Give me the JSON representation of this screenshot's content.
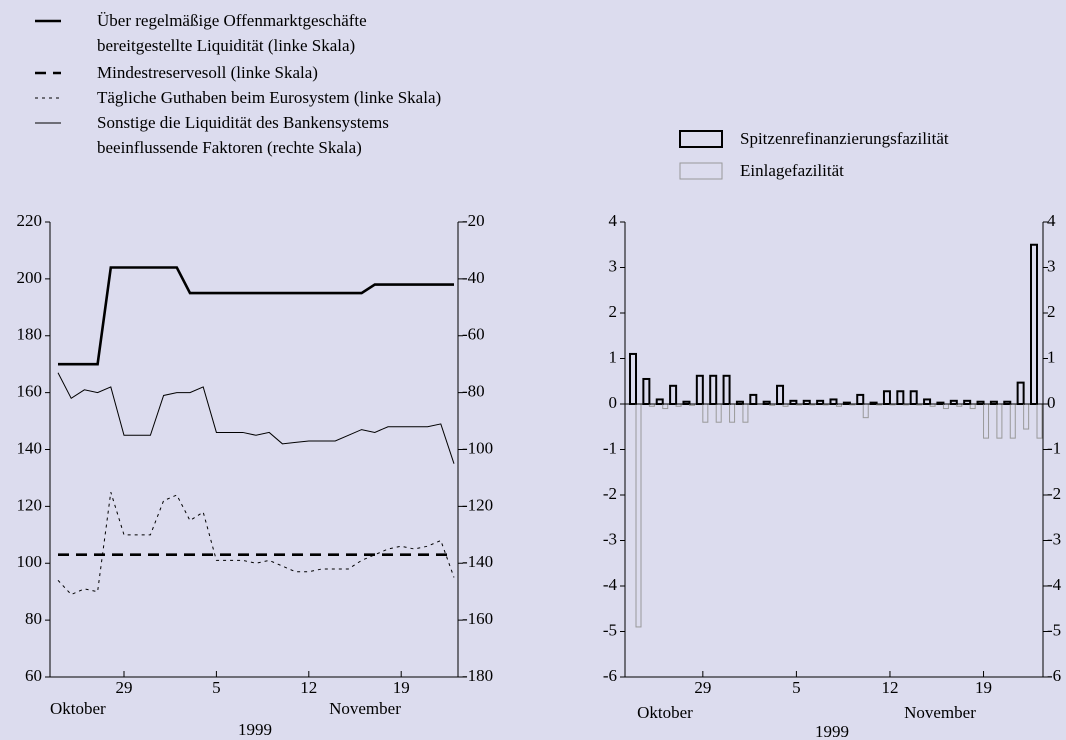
{
  "chart_data": [
    {
      "type": "line",
      "categories": [
        null,
        null,
        null,
        null,
        null,
        "29",
        null,
        null,
        null,
        null,
        null,
        null,
        "5",
        null,
        null,
        null,
        null,
        null,
        null,
        "12",
        null,
        null,
        null,
        null,
        null,
        null,
        "19",
        null,
        null,
        null,
        null
      ],
      "annotations": [
        "Oktober",
        "November",
        "1999"
      ],
      "legend": "top-left",
      "ylim": [
        60,
        220
      ],
      "yticks": [
        60,
        80,
        100,
        120,
        140,
        160,
        180,
        200,
        220
      ],
      "y2lim": [
        -180,
        -20
      ],
      "y2ticks": [
        -180,
        -160,
        -140,
        -120,
        -100,
        -80,
        -60,
        -40,
        -20
      ],
      "series": [
        {
          "name": "Über regelmäßige Offenmarktgeschäfte\nbereitgestellte Liquidität (linke Skala)",
          "color": "#000000",
          "style": "thick",
          "values": [
            170,
            170,
            170,
            170,
            204,
            204,
            204,
            204,
            204,
            204,
            195,
            195,
            195,
            195,
            195,
            195,
            195,
            195,
            195,
            195,
            195,
            195,
            195,
            195,
            198,
            198,
            198,
            198,
            198,
            198,
            198
          ]
        },
        {
          "name": "Mindestreservesoll (linke Skala)",
          "color": "#000000",
          "style": "dashed",
          "values": [
            103,
            103,
            103,
            103,
            103,
            103,
            103,
            103,
            103,
            103,
            103,
            103,
            103,
            103,
            103,
            103,
            103,
            103,
            103,
            103,
            103,
            103,
            103,
            103,
            103,
            103,
            103,
            103,
            103,
            103,
            103
          ]
        },
        {
          "name": "Tägliche Guthaben beim Eurosystem (linke Skala)",
          "color": "#000000",
          "style": "dotted",
          "values": [
            94,
            89,
            91,
            90,
            125,
            110,
            110,
            110,
            122,
            124,
            115,
            118,
            101,
            101,
            101,
            100,
            101,
            99,
            97,
            97,
            98,
            98,
            98,
            101,
            103,
            105,
            106,
            105,
            106,
            108,
            95
          ]
        },
        {
          "name": "Sonstige die Liquidität des Bankensystems\nbeeinflussende Faktoren (rechte Skala)",
          "color": "#000000",
          "style": "thin",
          "axis": "y2",
          "values": [
            -73,
            -82,
            -79,
            -80,
            -78,
            -95,
            -95,
            -95,
            -81,
            -80,
            -80,
            -78,
            -94,
            -94,
            -94,
            -95,
            -94,
            -98,
            -97.5,
            -97,
            -97,
            -97,
            -95,
            -93,
            -94,
            -92,
            -92,
            -92,
            -92,
            -91,
            -105
          ]
        }
      ]
    },
    {
      "type": "bar",
      "categories": [
        null,
        null,
        null,
        null,
        null,
        "29",
        null,
        null,
        null,
        null,
        null,
        null,
        "5",
        null,
        null,
        null,
        null,
        null,
        null,
        "12",
        null,
        null,
        null,
        null,
        null,
        null,
        "19",
        null,
        null,
        null,
        null
      ],
      "annotations": [
        "Oktober",
        "November",
        "1999"
      ],
      "legend": "top-right",
      "ylim": [
        -6,
        4
      ],
      "yticks": [
        -6,
        -5,
        -4,
        -3,
        -2,
        -1,
        0,
        1,
        2,
        3,
        4
      ],
      "y2lim": [
        -6,
        4
      ],
      "y2ticks": [
        -6,
        -5,
        -4,
        -3,
        -2,
        -1,
        0,
        1,
        2,
        3,
        4
      ],
      "series": [
        {
          "name": "Spitzenrefinanzierungsfazilität",
          "color": "#000000",
          "values": [
            1.1,
            0.55,
            0.1,
            0.4,
            0.05,
            0.62,
            0.62,
            0.62,
            0.05,
            0.2,
            0.05,
            0.4,
            0.07,
            0.07,
            0.07,
            0.1,
            0.03,
            0.2,
            0.03,
            0.28,
            0.28,
            0.28,
            0.1,
            0.03,
            0.07,
            0.07,
            0.05,
            0.05,
            0.05,
            0.47,
            3.5
          ]
        },
        {
          "name": "Einlagefazilität",
          "color": "#999999",
          "values": [
            -4.9,
            -0.05,
            -0.1,
            -0.05,
            -0.03,
            -0.4,
            -0.4,
            -0.4,
            -0.4,
            0,
            -0.03,
            -0.05,
            -0.02,
            -0.02,
            -0.02,
            -0.05,
            -0.02,
            -0.3,
            -0.02,
            -0.02,
            -0.02,
            -0.02,
            -0.05,
            -0.1,
            -0.05,
            -0.1,
            -0.75,
            -0.75,
            -0.75,
            -0.55,
            -0.75
          ]
        }
      ]
    }
  ]
}
